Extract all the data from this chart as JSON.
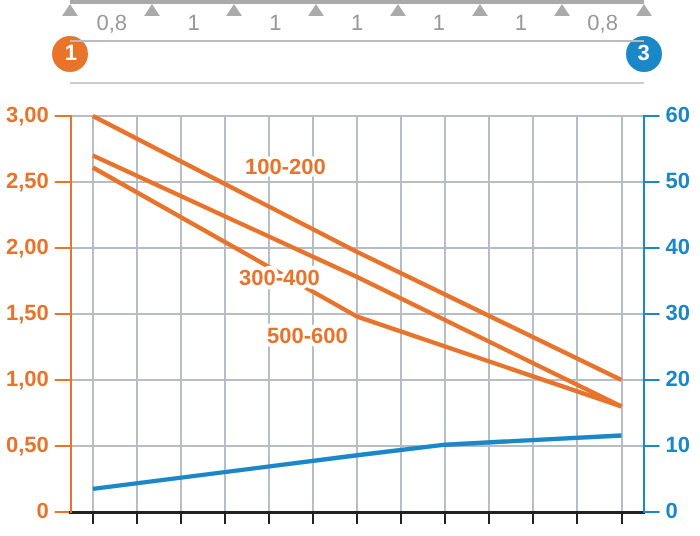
{
  "chart_data": {
    "type": "line",
    "categories": [
      null,
      null,
      null,
      null,
      null,
      null,
      null,
      null,
      null,
      null,
      null,
      null,
      null
    ],
    "series": [
      {
        "name": "100-200",
        "color": "#e8732a",
        "values": [
          3.0,
          null,
          null,
          null,
          null,
          null,
          1.97,
          null,
          null,
          null,
          null,
          null,
          1.0
        ]
      },
      {
        "name": "300-400",
        "color": "#e8732a",
        "values": [
          2.7,
          null,
          null,
          null,
          null,
          null,
          1.78,
          null,
          null,
          null,
          null,
          null,
          0.8
        ]
      },
      {
        "name": "500-600",
        "color": "#e8732a",
        "values": [
          2.61,
          null,
          null,
          null,
          null,
          null,
          1.48,
          null,
          null,
          null,
          null,
          null,
          0.8
        ]
      },
      {
        "color": "#1a87c8",
        "axis": "y2",
        "values": [
          3.5,
          null,
          null,
          null,
          null,
          null,
          8.6,
          null,
          10.2,
          null,
          null,
          null,
          11.6
        ]
      }
    ],
    "ylabel": "1",
    "y2label": "3",
    "ylim": [
      0,
      3
    ],
    "yticks": [
      {
        "value": 0,
        "label": "0"
      },
      {
        "value": 0.5,
        "label": "0,50"
      },
      {
        "value": 1,
        "label": "1,00"
      },
      {
        "value": 1.5,
        "label": "1,50"
      },
      {
        "value": 2,
        "label": "2,00"
      },
      {
        "value": 2.5,
        "label": "2,50"
      },
      {
        "value": 3,
        "label": "3,00"
      }
    ],
    "y2lim": [
      0,
      60
    ],
    "y2ticks": [
      0,
      10,
      20,
      30,
      40,
      50,
      60
    ],
    "annotations": [
      "0,8",
      "1",
      "1",
      "1",
      "1",
      "1",
      "0,8"
    ],
    "grid": true,
    "legend": false,
    "marker": "none",
    "line_style": "solid",
    "tick_labels": "y"
  }
}
